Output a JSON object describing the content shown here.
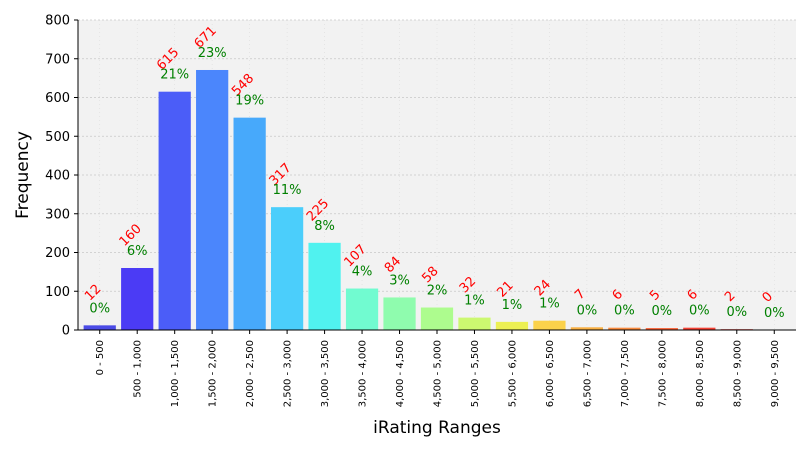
{
  "chart_data": {
    "type": "bar",
    "title": "",
    "xlabel": "iRating Ranges",
    "ylabel": "Frequency",
    "ylim": [
      0,
      800
    ],
    "yticks": [
      0,
      100,
      200,
      300,
      400,
      500,
      600,
      700,
      800
    ],
    "grid": true,
    "categories": [
      "0 - 500",
      "500 - 1,000",
      "1,000 - 1,500",
      "1,500 - 2,000",
      "2,000 - 2,500",
      "2,500 - 3,000",
      "3,000 - 3,500",
      "3,500 - 4,000",
      "4,000 - 4,500",
      "4,500 - 5,000",
      "5,000 - 5,500",
      "5,500 - 6,000",
      "6,000 - 6,500",
      "6,500 - 7,000",
      "7,000 - 7,500",
      "7,500 - 8,000",
      "8,000 - 8,500",
      "8,500 - 9,000",
      "9,000 - 9,500"
    ],
    "values": [
      12,
      160,
      615,
      671,
      548,
      317,
      225,
      107,
      84,
      58,
      32,
      21,
      24,
      7,
      6,
      5,
      6,
      2,
      0
    ],
    "percent_labels": [
      "0%",
      "6%",
      "21%",
      "23%",
      "19%",
      "11%",
      "8%",
      "4%",
      "3%",
      "2%",
      "1%",
      "1%",
      "1%",
      "0%",
      "0%",
      "0%",
      "0%",
      "0%",
      "0%"
    ],
    "bar_colors": [
      "#4b4be6",
      "#4b3bf5",
      "#4b5df8",
      "#4b86fc",
      "#47a9fb",
      "#4bcefb",
      "#50f2ef",
      "#71fbd0",
      "#8ffcae",
      "#adfc8e",
      "#ccf870",
      "#ecf053",
      "#fbd24b",
      "#f9b043",
      "#f98b3e",
      "#f86438",
      "#f44235",
      "#e8352f",
      "#d62d2d"
    ],
    "count_label_color": "#ff0000",
    "percent_label_color": "#008000",
    "plot_background": "#f2f2f2"
  }
}
